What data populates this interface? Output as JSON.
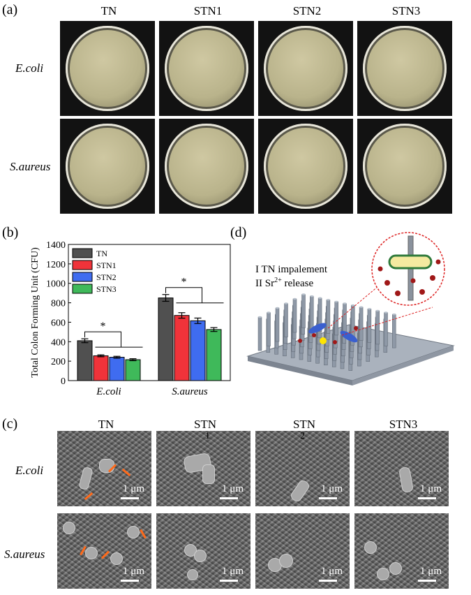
{
  "panel_labels": {
    "a": "(a)",
    "b": "(b)",
    "c": "(c)",
    "d": "(d)"
  },
  "panel_a": {
    "columns": [
      "TN",
      "STN1",
      "STN2",
      "STN3"
    ],
    "rows": [
      "E.coli",
      "S.aureus"
    ]
  },
  "panel_b": {
    "ylabel": "Total Colon Forming Unit (CFU)",
    "significance": "*"
  },
  "chart_data": {
    "type": "bar",
    "categories": [
      "E.coli",
      "S.aureus"
    ],
    "series": [
      {
        "name": "TN",
        "values": [
          410,
          850
        ],
        "errors": [
          20,
          35
        ],
        "color": "#505050"
      },
      {
        "name": "STN1",
        "values": [
          255,
          670
        ],
        "errors": [
          10,
          28
        ],
        "color": "#f0333a"
      },
      {
        "name": "STN2",
        "values": [
          240,
          615
        ],
        "errors": [
          10,
          28
        ],
        "color": "#3f6cf0"
      },
      {
        "name": "STN3",
        "values": [
          215,
          525
        ],
        "errors": [
          10,
          20
        ],
        "color": "#3fb95a"
      }
    ],
    "yticks": [
      0,
      200,
      400,
      600,
      800,
      1000,
      1200,
      1400
    ],
    "ylim": [
      0,
      1400
    ],
    "legend": "top-left"
  },
  "panel_d": {
    "line1": "I TN impalement",
    "line2_prefix": "II Sr",
    "line2_sup": "2+",
    "line2_suffix": " release"
  },
  "panel_c": {
    "columns": [
      "TN",
      "STN",
      "STN",
      "STN3"
    ],
    "sub_marks": [
      "",
      "1",
      "2",
      ""
    ],
    "rows": [
      "E.coli",
      "S.aureus"
    ],
    "scale": "1 μm"
  }
}
